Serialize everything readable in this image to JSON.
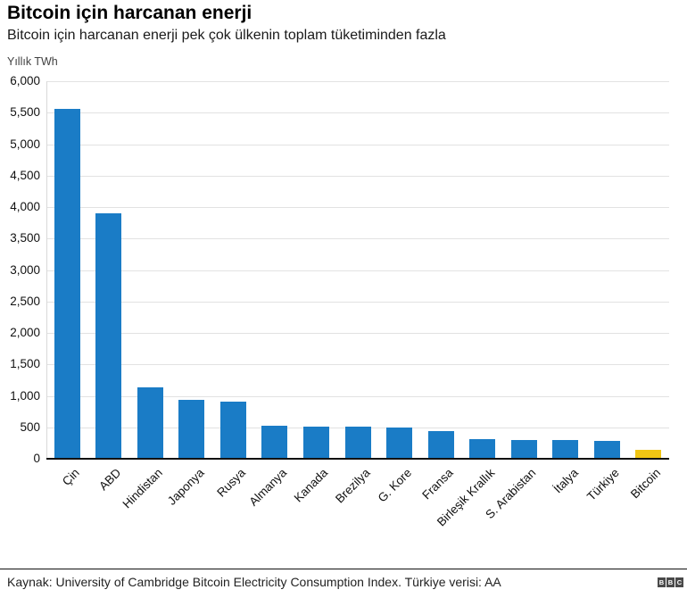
{
  "header": {
    "title": "Bitcoin için harcanan enerji",
    "subtitle": "Bitcoin için harcanan enerji pek çok ülkenin toplam tüketiminden fazla"
  },
  "chart": {
    "unit_label": "Yıllık TWh"
  },
  "chart_data": {
    "type": "bar",
    "title": "Bitcoin için harcanan enerji",
    "subtitle": "Bitcoin için harcanan enerji pek çok ülkenin toplam tüketiminden fazla",
    "ylabel": "Yıllık TWh",
    "xlabel": "",
    "categories": [
      "Çin",
      "ABD",
      "Hindistan",
      "Japonya",
      "Rusya",
      "Almanya",
      "Kanada",
      "Brezilya",
      "G. Kore",
      "Fransa",
      "Birleşik Krallık",
      "S. Arabistan",
      "İtalya",
      "Türkiye",
      "Bitcoin"
    ],
    "values": [
      5560,
      3900,
      1140,
      930,
      910,
      525,
      515,
      505,
      500,
      445,
      310,
      300,
      295,
      290,
      140
    ],
    "ylim": [
      0,
      6000
    ],
    "ytick_step": 500,
    "grid": true,
    "legend_position": "none",
    "bar_color": "#1A7CC6",
    "highlight_index": 14,
    "highlight_color": "#F0C514",
    "gridline_color": "#e2e2e2",
    "axis_color": "#111111"
  },
  "footer": {
    "source": "Kaynak: University of Cambridge Bitcoin Electricity Consumption Index. Türkiye verisi: AA",
    "logo_letters": [
      "B",
      "B",
      "C"
    ]
  }
}
